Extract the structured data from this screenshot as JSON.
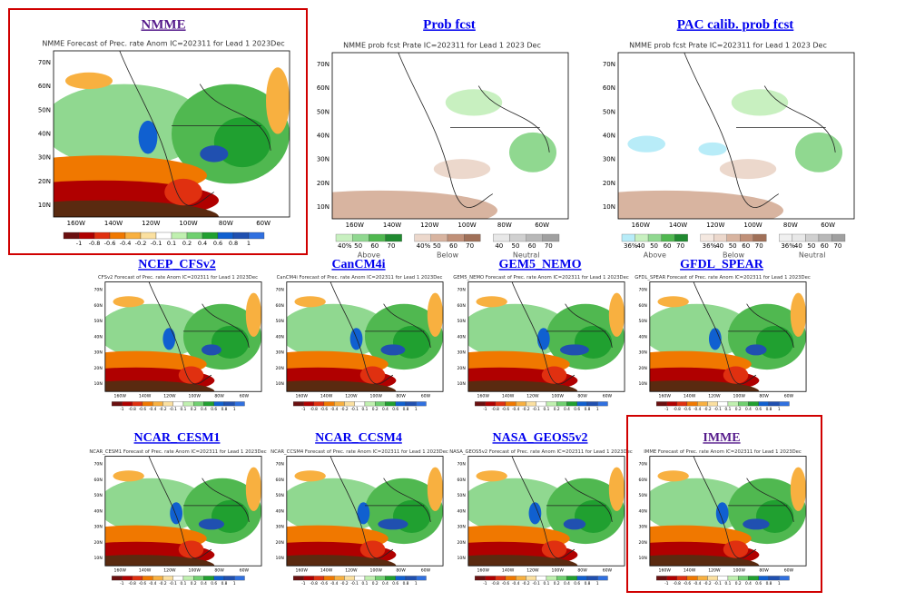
{
  "panels": [
    {
      "title": "NMME",
      "map_title": "NMME Forecast of Prec. rate Anom IC=202311 for Lead 1 2023Dec",
      "link_color": "#551a8b",
      "highlighted": true,
      "kind": "anom"
    },
    {
      "title": "Prob fcst",
      "map_title": "NMME prob fcst Prate IC=202311 for Lead 1 2023 Dec",
      "link_color": "#0000ee",
      "kind": "prob",
      "legend_groups": [
        {
          "labels": [
            "40%",
            "50",
            "60",
            "70"
          ],
          "name": "Above",
          "colors": [
            "#c8f0c0",
            "#90d890",
            "#50b850",
            "#208a30"
          ]
        },
        {
          "labels": [
            "40%",
            "50",
            "60",
            "70"
          ],
          "name": "Below",
          "colors": [
            "#ecd8cc",
            "#d8b4a0",
            "#c09078",
            "#a07058"
          ]
        },
        {
          "labels": [
            "40",
            "50",
            "60",
            "70"
          ],
          "name": "Neutral",
          "colors": [
            "#e8e8e8",
            "#d0d0d0",
            "#b8b8b8",
            "#a0a0a0"
          ]
        }
      ]
    },
    {
      "title": "PAC calib. prob fcst",
      "map_title": "NMME prob fcst Prate IC=202311 for Lead 1 2023 Dec",
      "link_color": "#0000ee",
      "kind": "prob",
      "legend_groups": [
        {
          "labels": [
            "36%",
            "40",
            "50",
            "60",
            "70"
          ],
          "name": "Above",
          "colors": [
            "#b8ecf8",
            "#c8f0c0",
            "#90d890",
            "#50b850",
            "#208a30"
          ]
        },
        {
          "labels": [
            "36%",
            "40",
            "50",
            "60",
            "70"
          ],
          "name": "Below",
          "colors": [
            "#f4e8e0",
            "#ecd8cc",
            "#d8b4a0",
            "#c09078",
            "#a07058"
          ]
        },
        {
          "labels": [
            "36%",
            "40",
            "50",
            "60",
            "70"
          ],
          "name": "Neutral",
          "colors": [
            "#f0f0f0",
            "#e8e8e8",
            "#d0d0d0",
            "#b8b8b8",
            "#a0a0a0"
          ]
        }
      ]
    },
    {
      "title": "NCEP_CFSv2",
      "map_title": "CFSv2 Forecast of Prec. rate Anom IC=202311 for Lead 1 2023Dec",
      "link_color": "#0000ee",
      "kind": "anom"
    },
    {
      "title": "CanCM4i",
      "map_title": "CanCM4i Forecast of Prec. rate Anom IC=202311 for Lead 1 2023Dec",
      "link_color": "#0000ee",
      "kind": "anom"
    },
    {
      "title": "GEM5_NEMO",
      "map_title": "GEM5_NEMO Forecast of Prec. rate Anom IC=202311 for Lead 1 2023Dec",
      "link_color": "#0000ee",
      "kind": "anom"
    },
    {
      "title": "GFDL_SPEAR",
      "map_title": "GFDL_SPEAR Forecast of Prec. rate Anom IC=202311 for Lead 1 2023Dec",
      "link_color": "#0000ee",
      "kind": "anom"
    },
    {
      "title": "NCAR_CESM1",
      "map_title": "NCAR_CESM1 Forecast of Prec. rate Anom IC=202311 for Lead 1 2023Dec",
      "link_color": "#0000ee",
      "kind": "anom"
    },
    {
      "title": "NCAR_CCSM4",
      "map_title": "NCAR_CCSM4 Forecast of Prec. rate Anom IC=202311 for Lead 1 2023Dec",
      "link_color": "#0000ee",
      "kind": "anom"
    },
    {
      "title": "NASA_GEOS5v2",
      "map_title": "NASA_GEOS5v2 Forecast of Prec. rate Anom IC=202311 for Lead 1 2023Dec",
      "link_color": "#0000ee",
      "kind": "anom"
    },
    {
      "title": "IMME",
      "map_title": "IMME Forecast of Prec. rate Anom IC=202311 for Lead 1 2023Dec",
      "link_color": "#551a8b",
      "highlighted": true,
      "kind": "anom"
    }
  ],
  "lat_labels": [
    "70N",
    "60N",
    "50N",
    "40N",
    "30N",
    "20N",
    "10N"
  ],
  "lon_labels": [
    "160W",
    "140W",
    "120W",
    "100W",
    "80W",
    "60W"
  ],
  "anomaly_colorbar": {
    "labels": [
      -1,
      -0.8,
      -0.6,
      -0.4,
      -0.2,
      -0.1,
      0.1,
      0.2,
      0.4,
      0.6,
      0.8,
      1
    ],
    "colors": [
      "#6a1010",
      "#b00000",
      "#e03010",
      "#f07800",
      "#f8b040",
      "#fbe0a0",
      "#ffffff",
      "#c0f0b0",
      "#70d070",
      "#20a030",
      "#1060d0",
      "#2050b0",
      "#3070e0"
    ]
  }
}
